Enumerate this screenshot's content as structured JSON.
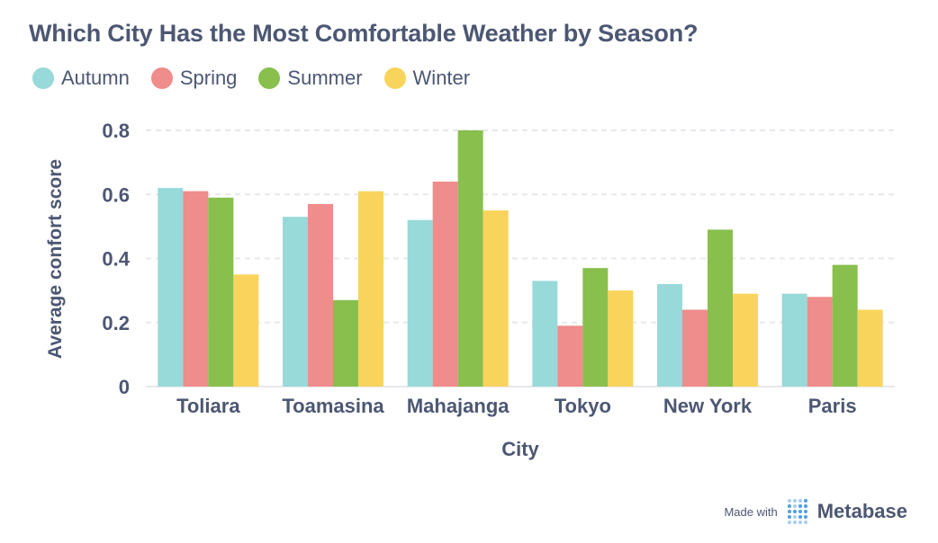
{
  "title": "Which City Has the Most Comfortable Weather by Season?",
  "footer": {
    "made_with": "Made with",
    "brand": "Metabase",
    "logo_icon": "metabase-logo-icon"
  },
  "chart_data": {
    "type": "bar",
    "title": "Which City Has the Most Comfortable Weather by Season?",
    "xlabel": "City",
    "ylabel": "Average confort score",
    "categories": [
      "Toliara",
      "Toamasina",
      "Mahajanga",
      "Tokyo",
      "New York",
      "Paris"
    ],
    "series": [
      {
        "name": "Autumn",
        "color": "#98d9d9",
        "values": [
          0.62,
          0.53,
          0.52,
          0.33,
          0.32,
          0.29
        ]
      },
      {
        "name": "Spring",
        "color": "#ef8c8c",
        "values": [
          0.61,
          0.57,
          0.64,
          0.19,
          0.24,
          0.28
        ]
      },
      {
        "name": "Summer",
        "color": "#88bf4d",
        "values": [
          0.59,
          0.27,
          0.8,
          0.37,
          0.49,
          0.38
        ]
      },
      {
        "name": "Winter",
        "color": "#f9d45c",
        "values": [
          0.35,
          0.61,
          0.55,
          0.3,
          0.29,
          0.24
        ]
      }
    ],
    "ylim": [
      0,
      0.8
    ],
    "yticks": [
      0,
      0.2,
      0.4,
      0.6,
      0.8
    ],
    "ytick_labels": [
      "0",
      "0.2",
      "0.4",
      "0.6",
      "0.8"
    ],
    "grid": true,
    "legend_position": "top-left"
  }
}
